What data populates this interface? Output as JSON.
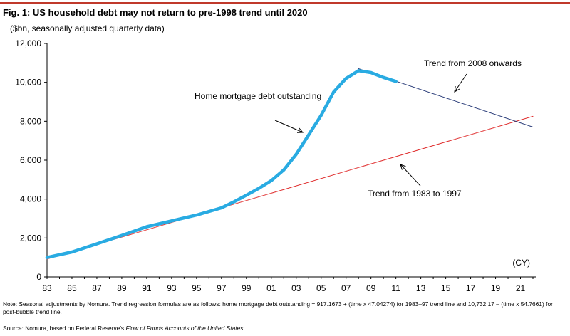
{
  "figure": {
    "title": "Fig. 1:  US household debt may not return to pre-1998 trend until 2020",
    "unit_label": "($bn, seasonally adjusted quarterly data)",
    "note": "Note: Seasonal adjustments by Nomura. Trend regression formulas are as follows: home mortgage debt outstanding = 917.1673 + (time x 47.04274) for 1983–97 trend line and 10,732.17 – (time x 54.7661) for post-bubble trend line.",
    "source_prefix": "Source: Nomura, based on Federal Reserve's ",
    "source_title": "Flow of Funds Accounts of the United States"
  },
  "colors": {
    "accent_rule": "#c0392b",
    "actual": "#29abe2",
    "trend_1983_1997": "#e03030",
    "trend_2008": "#2c3e7a"
  },
  "chart_data": {
    "type": "line",
    "title": "",
    "xlabel": "(CY)",
    "ylabel": "",
    "xlim": [
      1983,
      2022
    ],
    "ylim": [
      0,
      12000
    ],
    "grid": false,
    "x_ticks": [
      "83",
      "85",
      "87",
      "89",
      "91",
      "93",
      "95",
      "97",
      "99",
      "01",
      "03",
      "05",
      "07",
      "09",
      "11",
      "13",
      "15",
      "17",
      "19",
      "21"
    ],
    "y_ticks": [
      "0",
      "2,000",
      "4,000",
      "6,000",
      "8,000",
      "10,000",
      "12,000"
    ],
    "series": [
      {
        "name": "Home mortgage debt outstanding",
        "style": "thick",
        "points": [
          [
            1983,
            1000
          ],
          [
            1985,
            1280
          ],
          [
            1987,
            1700
          ],
          [
            1989,
            2130
          ],
          [
            1991,
            2580
          ],
          [
            1993,
            2880
          ],
          [
            1995,
            3180
          ],
          [
            1997,
            3550
          ],
          [
            1998,
            3860
          ],
          [
            1999,
            4200
          ],
          [
            2000,
            4550
          ],
          [
            2001,
            4950
          ],
          [
            2002,
            5500
          ],
          [
            2003,
            6300
          ],
          [
            2004,
            7300
          ],
          [
            2005,
            8300
          ],
          [
            2006,
            9500
          ],
          [
            2007,
            10200
          ],
          [
            2008,
            10600
          ],
          [
            2009,
            10500
          ],
          [
            2010,
            10250
          ],
          [
            2011,
            10050
          ]
        ]
      },
      {
        "name": "Trend from 1983 to 1997",
        "style": "thin",
        "points": [
          [
            1983,
            917
          ],
          [
            2022,
            8255
          ]
        ]
      },
      {
        "name": "Trend from 2008 onwards",
        "style": "thin",
        "points": [
          [
            2008,
            10700
          ],
          [
            2022,
            7700
          ]
        ]
      }
    ],
    "annotations": [
      {
        "text": "Home mortgage debt outstanding"
      },
      {
        "text": "Trend from 2008 onwards"
      },
      {
        "text": "Trend from 1983 to 1997"
      }
    ]
  }
}
